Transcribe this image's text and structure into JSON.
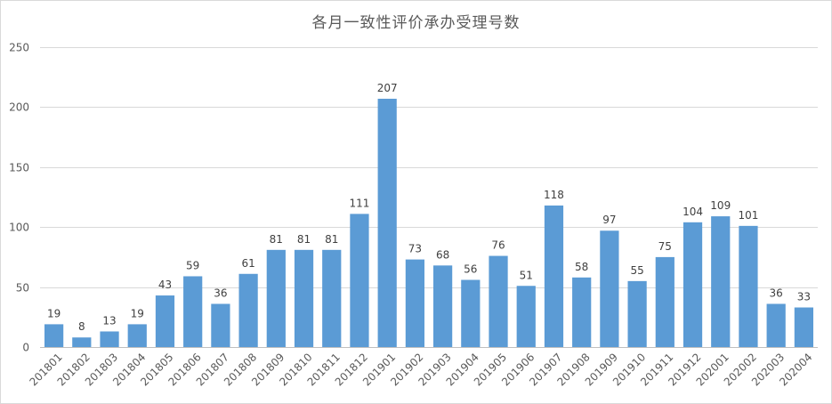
{
  "chart_data": {
    "type": "bar",
    "title": "各月一致性评价承办受理号数",
    "xlabel": "",
    "ylabel": "",
    "ylim": [
      0,
      250
    ],
    "yticks": [
      0,
      50,
      100,
      150,
      200,
      250
    ],
    "grid": true,
    "legend": "none",
    "bar_color": "#5b9bd5",
    "categories": [
      "201801",
      "201802",
      "201803",
      "201804",
      "201805",
      "201806",
      "201807",
      "201808",
      "201809",
      "201810",
      "201811",
      "201812",
      "201901",
      "201902",
      "201903",
      "201904",
      "201905",
      "201906",
      "201907",
      "201908",
      "201909",
      "201910",
      "201911",
      "201912",
      "202001",
      "202002",
      "202003",
      "202004"
    ],
    "values": [
      19,
      8,
      13,
      19,
      43,
      59,
      36,
      61,
      81,
      81,
      81,
      111,
      207,
      73,
      68,
      56,
      76,
      51,
      118,
      58,
      97,
      55,
      75,
      104,
      109,
      101,
      36,
      33
    ]
  }
}
